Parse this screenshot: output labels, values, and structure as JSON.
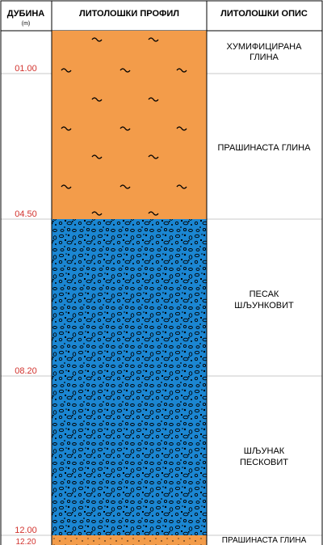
{
  "header": {
    "depth_title": "ДУБИНА",
    "depth_unit": "(m)",
    "profile_title": "ЛИТОЛОШКИ ПРОФИЛ",
    "description_title": "ЛИТОЛОШКИ ОПИС"
  },
  "colors": {
    "clay": "#F39C4A",
    "gravel": "#1B86D2",
    "depth_label": "#D2322D",
    "line": "#000000",
    "grid": "#c8c8c8"
  },
  "depth_labels": [
    "01.00",
    "04.50",
    "08.20",
    "12.00",
    "12.20"
  ],
  "layers": [
    {
      "pattern": "clay",
      "pattern_icon": "wave-tilde-icon",
      "description_lines": [
        "ХУМИФИЦИРАНА",
        "ГЛИНА"
      ]
    },
    {
      "pattern": "clay",
      "pattern_icon": "wave-tilde-icon",
      "description_lines": [
        "ПРАШИНАСТА ГЛИНА"
      ]
    },
    {
      "pattern": "gravel",
      "pattern_icon": "pebble-icon",
      "description_lines": [
        "ПЕСАК",
        "ШЉУНКОВИТ"
      ]
    },
    {
      "pattern": "gravel",
      "pattern_icon": "pebble-icon",
      "description_lines": [
        "ШЉУНАК",
        "ПЕСКОВИТ"
      ]
    },
    {
      "pattern": "clay",
      "pattern_icon": "dot-icon",
      "description_lines": [
        "ПРАШИНАСТА ГЛИНА"
      ]
    }
  ]
}
